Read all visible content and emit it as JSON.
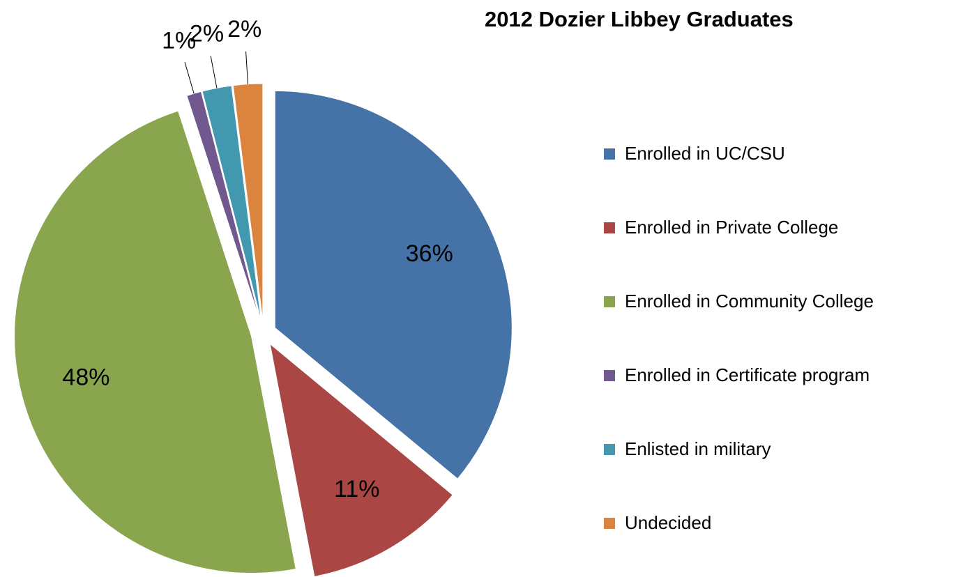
{
  "chart_data": {
    "type": "pie",
    "title": "2012 Dozier Libbey Graduates",
    "categories": [
      "Enrolled in UC/CSU",
      "Enrolled in Private College",
      "Enrolled in Community College",
      "Enrolled in Certificate program",
      "Enlisted in military",
      "Undecided"
    ],
    "values": [
      36,
      11,
      48,
      1,
      2,
      2
    ],
    "value_labels": [
      "36%",
      "11%",
      "48%",
      "1%",
      "2%",
      "2%"
    ],
    "colors": [
      "#4572a7",
      "#aa4643",
      "#89a54e",
      "#71588f",
      "#4198af",
      "#db843d"
    ],
    "legend": "right"
  }
}
